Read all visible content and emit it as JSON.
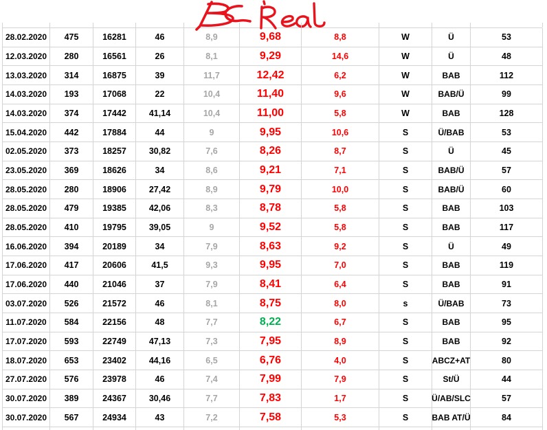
{
  "annotations": {
    "left_label": "BC",
    "right_label": "Real",
    "ink_color": "#e8131c"
  },
  "colors": {
    "grid": "#d4d4d4",
    "black": "#000000",
    "gray": "#a6a6a6",
    "red": "#ff0000",
    "green": "#00b050"
  },
  "table": {
    "columns": [
      "date",
      "value-b",
      "odometer",
      "value-d",
      "bc-estimate",
      "real-consumption",
      "difference",
      "season",
      "road-type",
      "distance"
    ],
    "rows": [
      {
        "date": "28.02.2020",
        "b": "475",
        "c": "16281",
        "d": "46",
        "bc": "8,9",
        "real": "9,68",
        "real_color": "red",
        "diff": "8,8",
        "season": "W",
        "type": "Ü",
        "count": "53"
      },
      {
        "date": "12.03.2020",
        "b": "280",
        "c": "16561",
        "d": "26",
        "bc": "8,1",
        "real": "9,29",
        "real_color": "red",
        "diff": "14,6",
        "season": "W",
        "type": "Ü",
        "count": "48"
      },
      {
        "date": "13.03.2020",
        "b": "314",
        "c": "16875",
        "d": "39",
        "bc": "11,7",
        "real": "12,42",
        "real_color": "red",
        "diff": "6,2",
        "season": "W",
        "type": "BAB",
        "count": "112"
      },
      {
        "date": "14.03.2020",
        "b": "193",
        "c": "17068",
        "d": "22",
        "bc": "10,4",
        "real": "11,40",
        "real_color": "red",
        "diff": "9,6",
        "season": "W",
        "type": "BAB/Ü",
        "count": "99"
      },
      {
        "date": "14.03.2020",
        "b": "374",
        "c": "17442",
        "d": "41,14",
        "bc": "10,4",
        "real": "11,00",
        "real_color": "red",
        "diff": "5,8",
        "season": "W",
        "type": "BAB",
        "count": "128"
      },
      {
        "date": "15.04.2020",
        "b": "442",
        "c": "17884",
        "d": "44",
        "bc": "9",
        "real": "9,95",
        "real_color": "red",
        "diff": "10,6",
        "season": "S",
        "type": "Ü/BAB",
        "count": "53"
      },
      {
        "date": "02.05.2020",
        "b": "373",
        "c": "18257",
        "d": "30,82",
        "bc": "7,6",
        "real": "8,26",
        "real_color": "red",
        "diff": "8,7",
        "season": "S",
        "type": "Ü",
        "count": "45"
      },
      {
        "date": "23.05.2020",
        "b": "369",
        "c": "18626",
        "d": "34",
        "bc": "8,6",
        "real": "9,21",
        "real_color": "red",
        "diff": "7,1",
        "season": "S",
        "type": "BAB/Ü",
        "count": "57"
      },
      {
        "date": "28.05.2020",
        "b": "280",
        "c": "18906",
        "d": "27,42",
        "bc": "8,9",
        "real": "9,79",
        "real_color": "red",
        "diff": "10,0",
        "season": "S",
        "type": "BAB/Ü",
        "count": "60"
      },
      {
        "date": "28.05.2020",
        "b": "479",
        "c": "19385",
        "d": "42,06",
        "bc": "8,3",
        "real": "8,78",
        "real_color": "red",
        "diff": "5,8",
        "season": "S",
        "type": "BAB",
        "count": "103"
      },
      {
        "date": "28.05.2020",
        "b": "410",
        "c": "19795",
        "d": "39,05",
        "bc": "9",
        "real": "9,52",
        "real_color": "red",
        "diff": "5,8",
        "season": "S",
        "type": "BAB",
        "count": "117"
      },
      {
        "date": "16.06.2020",
        "b": "394",
        "c": "20189",
        "d": "34",
        "bc": "7,9",
        "real": "8,63",
        "real_color": "red",
        "diff": "9,2",
        "season": "S",
        "type": "Ü",
        "count": "49"
      },
      {
        "date": "17.06.2020",
        "b": "417",
        "c": "20606",
        "d": "41,5",
        "bc": "9,3",
        "real": "9,95",
        "real_color": "red",
        "diff": "7,0",
        "season": "S",
        "type": "BAB",
        "count": "119"
      },
      {
        "date": "17.06.2020",
        "b": "440",
        "c": "21046",
        "d": "37",
        "bc": "7,9",
        "real": "8,41",
        "real_color": "red",
        "diff": "6,4",
        "season": "S",
        "type": "BAB",
        "count": "91"
      },
      {
        "date": "03.07.2020",
        "b": "526",
        "c": "21572",
        "d": "46",
        "bc": "8,1",
        "real": "8,75",
        "real_color": "red",
        "diff": "8,0",
        "season": "s",
        "type": "Ü/BAB",
        "count": "73"
      },
      {
        "date": "11.07.2020",
        "b": "584",
        "c": "22156",
        "d": "48",
        "bc": "7,7",
        "real": "8,22",
        "real_color": "green",
        "diff": "6,7",
        "season": "S",
        "type": "BAB",
        "count": "95"
      },
      {
        "date": "17.07.2020",
        "b": "593",
        "c": "22749",
        "d": "47,13",
        "bc": "7,3",
        "real": "7,95",
        "real_color": "red",
        "diff": "8,9",
        "season": "S",
        "type": "BAB",
        "count": "92"
      },
      {
        "date": "18.07.2020",
        "b": "653",
        "c": "23402",
        "d": "44,16",
        "bc": "6,5",
        "real": "6,76",
        "real_color": "red",
        "diff": "4,0",
        "season": "S",
        "type": "ABCZ+AT",
        "count": "80"
      },
      {
        "date": "27.07.2020",
        "b": "576",
        "c": "23978",
        "d": "46",
        "bc": "7,4",
        "real": "7,99",
        "real_color": "red",
        "diff": "7,9",
        "season": "S",
        "type": "St/Ü",
        "count": "44"
      },
      {
        "date": "30.07.2020",
        "b": "389",
        "c": "24367",
        "d": "30,46",
        "bc": "7,7",
        "real": "7,83",
        "real_color": "red",
        "diff": "1,7",
        "season": "S",
        "type": "Ü/AB/SLC",
        "count": "57"
      },
      {
        "date": "30.07.2020",
        "b": "567",
        "c": "24934",
        "d": "43",
        "bc": "7,2",
        "real": "7,58",
        "real_color": "red",
        "diff": "5,3",
        "season": "S",
        "type": "BAB AT/Ü",
        "count": "84"
      }
    ]
  }
}
